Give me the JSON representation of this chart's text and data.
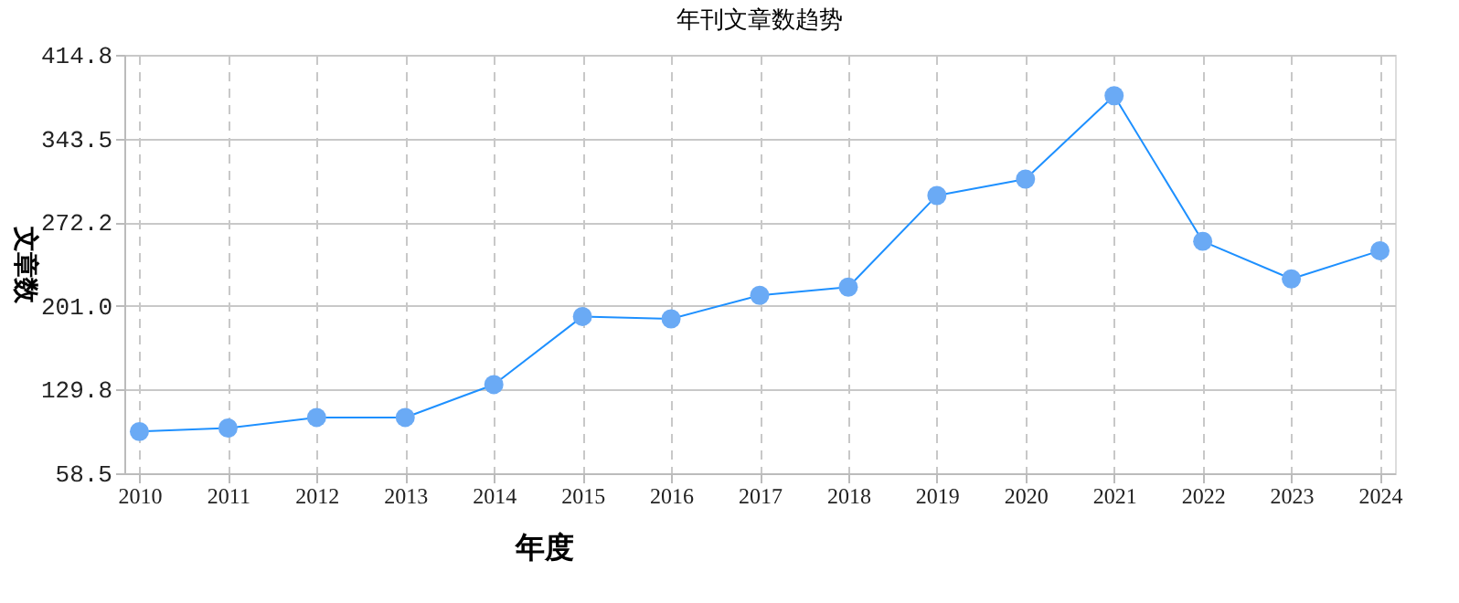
{
  "chart_data": {
    "type": "line",
    "title": "年刊文章数趋势",
    "xlabel": "年度",
    "ylabel": "文章数",
    "categories": [
      "2010",
      "2011",
      "2012",
      "2013",
      "2014",
      "2015",
      "2016",
      "2017",
      "2018",
      "2019",
      "2020",
      "2021",
      "2022",
      "2023",
      "2024"
    ],
    "series": [
      {
        "color": "#1e90ff",
        "values": [
          94,
          97,
          106,
          106,
          134,
          192,
          190,
          210,
          217,
          295,
          309,
          380,
          256,
          224,
          248
        ]
      }
    ],
    "ylim": [
      58.5,
      414.8
    ],
    "yticks": [
      58.5,
      129.8,
      {
        "value": 201,
        "label": "201.0"
      },
      272.2,
      343.5,
      414.8
    ],
    "grid": true,
    "marker": "circle",
    "line_style": "solid"
  }
}
